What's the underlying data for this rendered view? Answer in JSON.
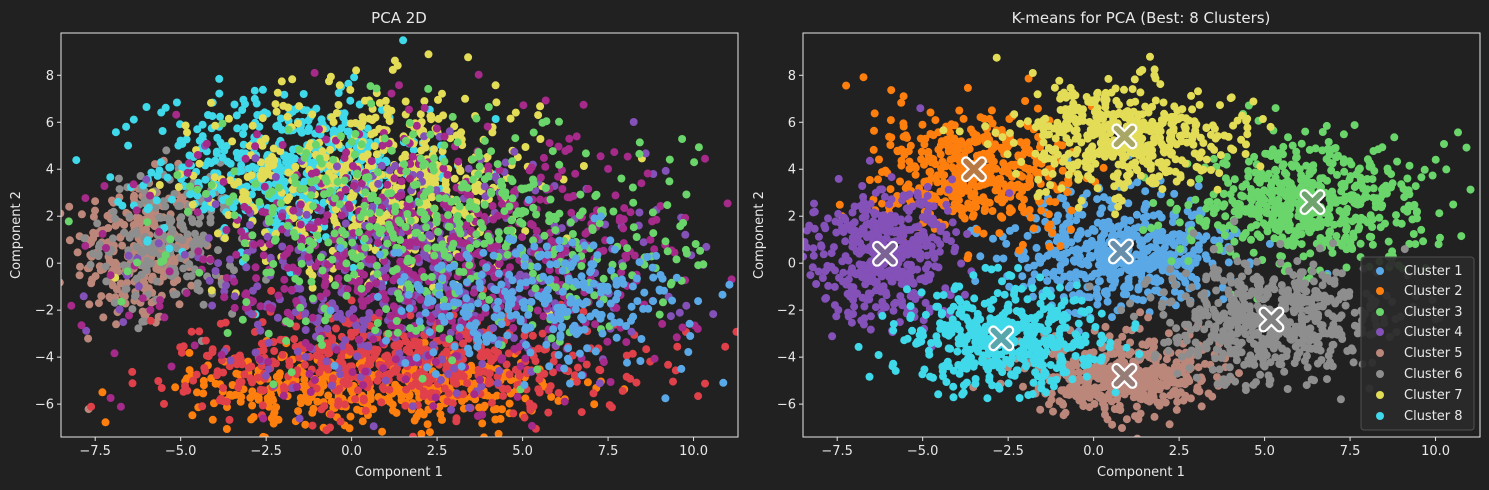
{
  "colors": {
    "background": "#212121",
    "axes_face": "#212121",
    "spine": "#e6e6e6",
    "text": "#e8e8e8"
  },
  "legend_items": [
    {
      "label": "Cluster 1",
      "color": "#5aa9e6"
    },
    {
      "label": "Cluster 2",
      "color": "#ff7f0e"
    },
    {
      "label": "Cluster 3",
      "color": "#6ad56a"
    },
    {
      "label": "Cluster 4",
      "color": "#8451b8"
    },
    {
      "label": "Cluster 5",
      "color": "#bc877b"
    },
    {
      "label": "Cluster 6",
      "color": "#8e8e8e"
    },
    {
      "label": "Cluster 7",
      "color": "#e2dc56"
    },
    {
      "label": "Cluster 8",
      "color": "#3fd9ea"
    }
  ],
  "chart_data": [
    {
      "type": "scatter",
      "title": "PCA 2D",
      "xlabel": "Component 1",
      "ylabel": "Component 2",
      "xlim": [
        -8.5,
        11.3
      ],
      "ylim": [
        -7.4,
        9.8
      ],
      "xticks": [
        -7.5,
        -5.0,
        -2.5,
        0.0,
        2.5,
        5.0,
        7.5,
        10.0
      ],
      "xtick_labels": [
        "−7.5",
        "−5.0",
        "−2.5",
        "0.0",
        "2.5",
        "5.0",
        "7.5",
        "10.0"
      ],
      "yticks": [
        -6,
        -4,
        -2,
        0,
        2,
        4,
        6,
        8
      ],
      "ytick_labels": [
        "−6",
        "−4",
        "−2",
        "0",
        "2",
        "4",
        "6",
        "8"
      ],
      "grid": false,
      "legend": "none",
      "series": [
        {
          "color": "#bc877b",
          "center": [
            -6.3,
            0.5
          ],
          "spread": [
            0.9,
            1.6
          ],
          "n": 260
        },
        {
          "color": "#8e8e8e",
          "center": [
            -5.3,
            1.0
          ],
          "spread": [
            1.0,
            1.5
          ],
          "n": 200
        },
        {
          "color": "#3fd9ea",
          "center": [
            -1.8,
            4.0
          ],
          "spread": [
            2.0,
            1.6
          ],
          "n": 520
        },
        {
          "color": "#e2dc56",
          "center": [
            0.8,
            3.6
          ],
          "spread": [
            2.4,
            2.0
          ],
          "n": 520
        },
        {
          "color": "#ff7f0e",
          "center": [
            0.5,
            -5.3
          ],
          "spread": [
            2.6,
            0.8
          ],
          "n": 420
        },
        {
          "color": "#e0404a",
          "center": [
            1.5,
            -4.2
          ],
          "spread": [
            3.4,
            1.1
          ],
          "n": 520
        },
        {
          "color": "#8451b8",
          "center": [
            1.5,
            -0.5
          ],
          "spread": [
            3.7,
            2.3
          ],
          "n": 480
        },
        {
          "color": "#a52a8a",
          "center": [
            2.3,
            0.3
          ],
          "spread": [
            3.8,
            2.6
          ],
          "n": 650
        },
        {
          "color": "#6ad56a",
          "center": [
            2.8,
            1.2
          ],
          "spread": [
            3.6,
            2.3
          ],
          "n": 480
        },
        {
          "color": "#5aa9e6",
          "center": [
            5.5,
            -1.6
          ],
          "spread": [
            2.3,
            1.4
          ],
          "n": 280
        }
      ]
    },
    {
      "type": "scatter",
      "title": "K-means for PCA (Best: 8 Clusters)",
      "xlabel": "Component 1",
      "ylabel": "Component 2",
      "xlim": [
        -8.5,
        11.3
      ],
      "ylim": [
        -7.4,
        9.8
      ],
      "xticks": [
        -7.5,
        -5.0,
        -2.5,
        0.0,
        2.5,
        5.0,
        7.5,
        10.0
      ],
      "xtick_labels": [
        "−7.5",
        "−5.0",
        "−2.5",
        "0.0",
        "2.5",
        "5.0",
        "7.5",
        "10.0"
      ],
      "yticks": [
        -6,
        -4,
        -2,
        0,
        2,
        4,
        6,
        8
      ],
      "ytick_labels": [
        "−6",
        "−4",
        "−2",
        "0",
        "2",
        "4",
        "6",
        "8"
      ],
      "grid": false,
      "legend": "lower-right",
      "series": [
        {
          "name": "Cluster 1",
          "color": "#5aa9e6",
          "centroid": [
            0.8,
            0.5
          ],
          "spread": [
            1.6,
            1.2
          ],
          "n": 520
        },
        {
          "name": "Cluster 2",
          "color": "#ff7f0e",
          "centroid": [
            -3.5,
            4.0
          ],
          "spread": [
            1.5,
            1.3
          ],
          "n": 460
        },
        {
          "name": "Cluster 3",
          "color": "#6ad56a",
          "centroid": [
            6.4,
            2.6
          ],
          "spread": [
            1.8,
            1.4
          ],
          "n": 560
        },
        {
          "name": "Cluster 4",
          "color": "#8451b8",
          "centroid": [
            -6.1,
            0.4
          ],
          "spread": [
            1.1,
            1.4
          ],
          "n": 440
        },
        {
          "name": "Cluster 5",
          "color": "#bc877b",
          "centroid": [
            0.9,
            -4.8
          ],
          "spread": [
            1.4,
            0.9
          ],
          "n": 440
        },
        {
          "name": "Cluster 6",
          "color": "#8e8e8e",
          "centroid": [
            5.2,
            -2.4
          ],
          "spread": [
            1.7,
            1.3
          ],
          "n": 560
        },
        {
          "name": "Cluster 7",
          "color": "#e2dc56",
          "centroid": [
            0.9,
            5.4
          ],
          "spread": [
            1.6,
            1.2
          ],
          "n": 480
        },
        {
          "name": "Cluster 8",
          "color": "#3fd9ea",
          "centroid": [
            -2.7,
            -3.2
          ],
          "spread": [
            1.4,
            1.1
          ],
          "n": 460
        }
      ]
    }
  ]
}
